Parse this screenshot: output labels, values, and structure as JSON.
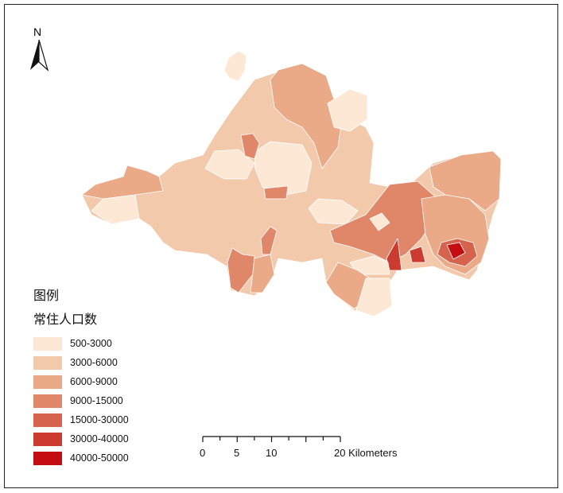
{
  "north_arrow": {
    "label": "N"
  },
  "legend": {
    "title": "图例",
    "subtitle": "常住人口数",
    "items": [
      {
        "label": "500-3000",
        "color": "#fde8d6"
      },
      {
        "label": "3000-6000",
        "color": "#f3c9ab"
      },
      {
        "label": "6000-9000",
        "color": "#eaa987"
      },
      {
        "label": "9000-15000",
        "color": "#e0876a"
      },
      {
        "label": "15000-30000",
        "color": "#d6634d"
      },
      {
        "label": "30000-40000",
        "color": "#cc3b30"
      },
      {
        "label": "40000-50000",
        "color": "#c40d10"
      }
    ]
  },
  "scale_bar": {
    "labels": [
      "0",
      "5",
      "10",
      "20 Kilometers"
    ]
  }
}
